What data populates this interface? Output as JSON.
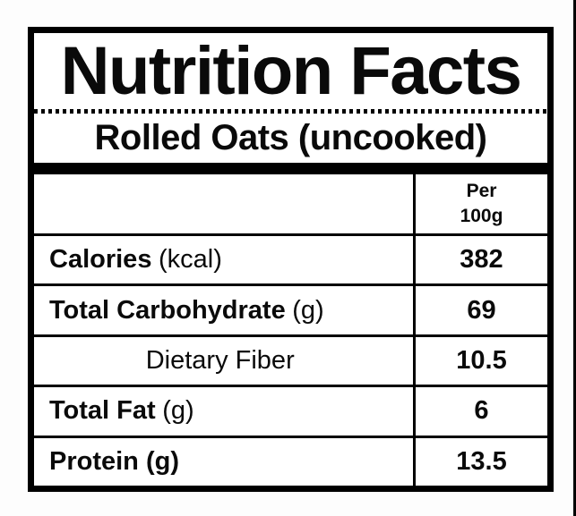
{
  "label": {
    "title": "Nutrition Facts",
    "subtitle": "Rolled Oats (uncooked)",
    "column_header": {
      "line1": "Per",
      "line2": "100g"
    },
    "rows": [
      {
        "name": "Calories",
        "unit": "(kcal)",
        "value": "382",
        "style": "primary"
      },
      {
        "name": "Total Carbohydrate",
        "unit": "(g)",
        "value": "69",
        "style": "primary"
      },
      {
        "name": "Dietary Fiber",
        "unit": "",
        "value": "10.5",
        "style": "sub"
      },
      {
        "name": "Total Fat",
        "unit": "(g)",
        "value": "6",
        "style": "primary"
      },
      {
        "name": "Protein (g)",
        "unit": "",
        "value": "13.5",
        "style": "primary"
      }
    ],
    "colors": {
      "border": "#000000",
      "background": "#ffffff",
      "text": "#0a0a0a"
    }
  }
}
